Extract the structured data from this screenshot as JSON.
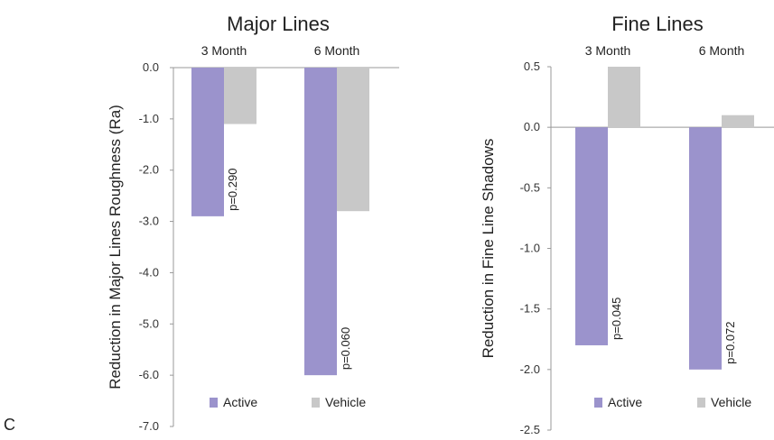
{
  "panel_label": "C",
  "colors": {
    "Active": "#9b93cc",
    "Vehicle": "#c8c8c8",
    "axis": "#999999",
    "text": "#222222"
  },
  "chart_data": [
    {
      "type": "bar",
      "title": "Major Lines",
      "ylabel": "Reduction in Major Lines Roughness (Ra)",
      "xlabel": "",
      "categories": [
        "3 Month",
        "6 Month"
      ],
      "series": [
        {
          "name": "Active",
          "values": [
            -2.9,
            -6.0
          ]
        },
        {
          "name": "Vehicle",
          "values": [
            -1.1,
            -2.8
          ]
        }
      ],
      "ylim": [
        -7.0,
        0.0
      ],
      "yticks": [
        "0.0",
        "-1.0",
        "-2.0",
        "-3.0",
        "-4.0",
        "-5.0",
        "-6.0",
        "-7.0"
      ],
      "ytick_values": [
        0,
        -1,
        -2,
        -3,
        -4,
        -5,
        -6,
        -7
      ],
      "p_values": [
        "p=0.290",
        "p=0.060"
      ],
      "legend": "bottom",
      "grid": false
    },
    {
      "type": "bar",
      "title": "Fine Lines",
      "ylabel": "Reduction in Fine Line Shadows",
      "xlabel": "",
      "categories": [
        "3 Month",
        "6 Month"
      ],
      "series": [
        {
          "name": "Active",
          "values": [
            -1.8,
            -2.0
          ]
        },
        {
          "name": "Vehicle",
          "values": [
            0.5,
            0.1
          ]
        }
      ],
      "ylim": [
        -2.5,
        0.5
      ],
      "yticks": [
        "0.5",
        "0.0",
        "-0.5",
        "-1.0",
        "-1.5",
        "-2.0",
        "-2.5"
      ],
      "ytick_values": [
        0.5,
        0,
        -0.5,
        -1,
        -1.5,
        -2,
        -2.5
      ],
      "p_values": [
        "p=0.045",
        "p=0.072"
      ],
      "legend": "bottom",
      "grid": false
    }
  ]
}
